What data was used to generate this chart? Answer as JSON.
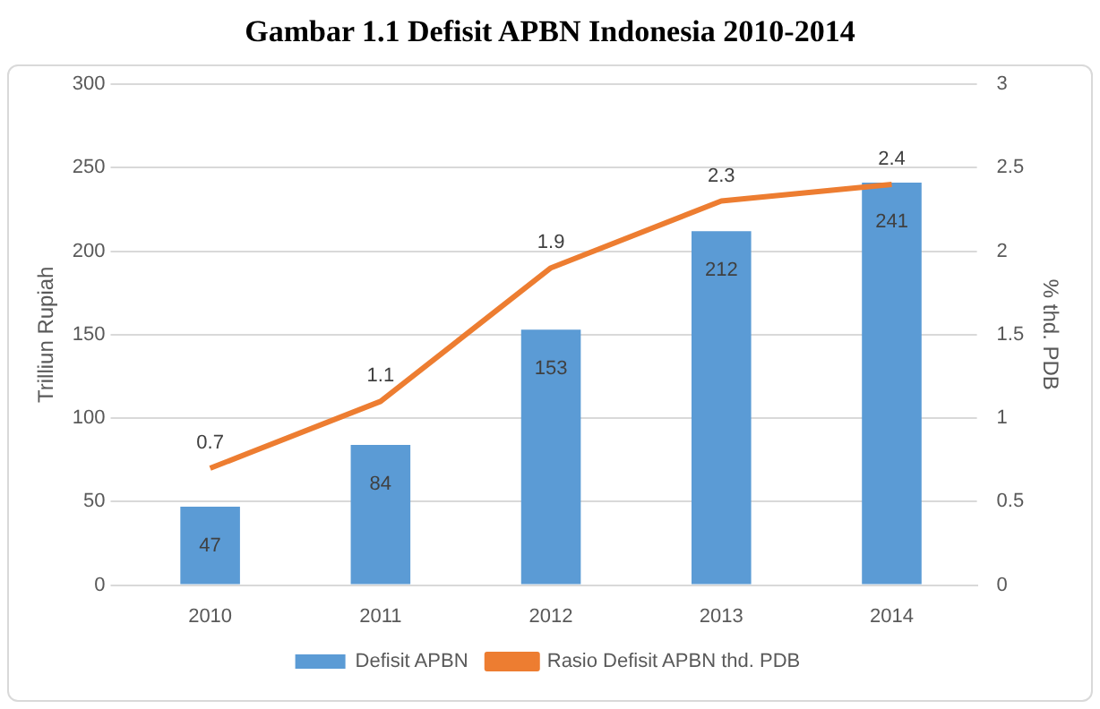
{
  "chart_data": {
    "type": "bar",
    "title": "Gambar 1.1 Defisit APBN Indonesia 2010-2014",
    "ylabel": "Trilliun Rupiah",
    "y2label": "% thd. PDB",
    "categories": [
      "2010",
      "2011",
      "2012",
      "2013",
      "2014"
    ],
    "series": [
      {
        "name": "Defisit APBN",
        "color": "#5b9bd5",
        "values": [
          47,
          84,
          153,
          212,
          241
        ]
      },
      {
        "name": "Rasio Defisit APBN thd. PDB",
        "type": "line",
        "axis": "y2",
        "color": "#ed7d31",
        "values": [
          0.7,
          1.1,
          1.9,
          2.3,
          2.4
        ]
      }
    ],
    "ylim": [
      0,
      300
    ],
    "yticks": [
      0,
      50,
      100,
      150,
      200,
      250,
      300
    ],
    "y2lim": [
      0,
      3
    ],
    "y2ticks": [
      0,
      0.5,
      1,
      1.5,
      2,
      2.5,
      3
    ],
    "grid": "y",
    "legend": "bottom",
    "marker": "none",
    "line_style": "solid",
    "data_labels": true
  }
}
